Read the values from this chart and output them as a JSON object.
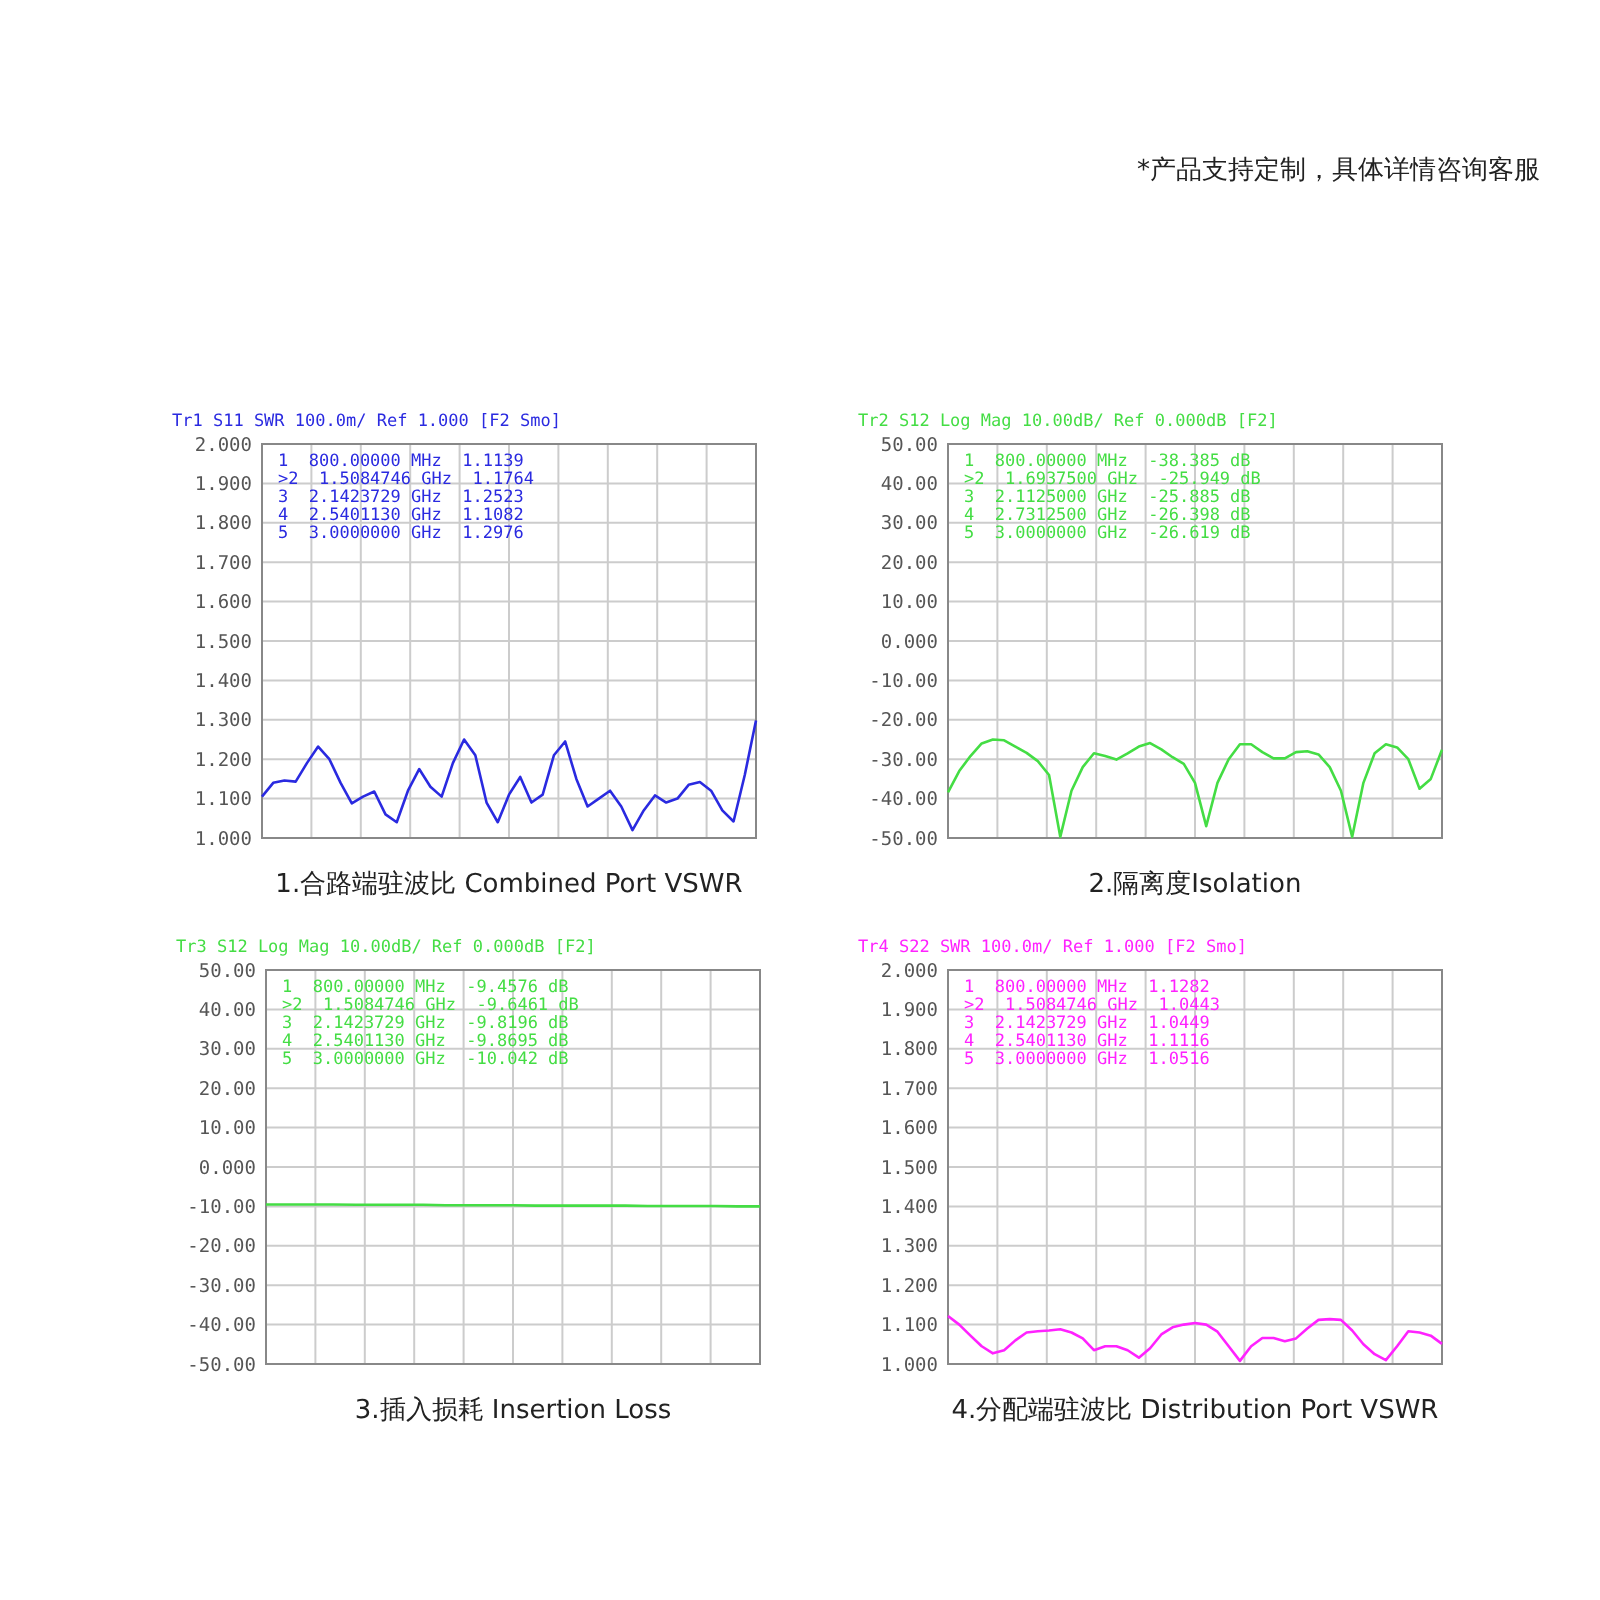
{
  "chart_data": [
    {
      "type": "other",
      "annotations": [
        "*产品支持定制，具体详情咨询客服"
      ]
    },
    {
      "type": "line",
      "title": "Tr1 S11 SWR 100.0m/ Ref 1.000 [F2 Smo]",
      "xlabel": "1.合路端驻波比 Combined Port VSWR",
      "grid": true,
      "tick_labels": "y",
      "categories": [
        null,
        null,
        null,
        null,
        null,
        null,
        null,
        null,
        null,
        null,
        null,
        null,
        null,
        null,
        null,
        null,
        null,
        null,
        null,
        null,
        null,
        null,
        null,
        null,
        null,
        null,
        null,
        null,
        null,
        null,
        null,
        null,
        null,
        null,
        null,
        null,
        null,
        null,
        null,
        null,
        null,
        null,
        null,
        null,
        null
      ],
      "ylim": [
        1.0,
        2.0
      ],
      "yticks": [
        {
          "value": 1.0,
          "label": "1.000"
        },
        {
          "value": 1.1,
          "label": "1.100"
        },
        {
          "value": 1.2,
          "label": "1.200"
        },
        {
          "value": 1.3,
          "label": "1.300"
        },
        {
          "value": 1.4,
          "label": "1.400"
        },
        {
          "value": 1.5,
          "label": "1.500"
        },
        {
          "value": 1.6,
          "label": "1.600"
        },
        {
          "value": 1.7,
          "label": "1.700"
        },
        {
          "value": 1.8,
          "label": "1.800"
        },
        {
          "value": 1.9,
          "label": "1.900"
        },
        {
          "value": 2.0,
          "label": "2.000"
        }
      ],
      "series": [
        {
          "color": "#2a2ae0",
          "values": [
            1.105,
            1.14,
            1.146,
            1.143,
            1.19,
            1.232,
            1.2,
            1.14,
            1.088,
            1.105,
            1.118,
            1.06,
            1.04,
            1.12,
            1.175,
            1.13,
            1.105,
            1.19,
            1.25,
            1.21,
            1.09,
            1.04,
            1.11,
            1.155,
            1.09,
            1.11,
            1.21,
            1.245,
            1.15,
            1.08,
            1.1,
            1.12,
            1.08,
            1.02,
            1.07,
            1.108,
            1.09,
            1.1,
            1.135,
            1.142,
            1.12,
            1.07,
            1.042,
            1.16,
            1.298
          ]
        }
      ],
      "annotations": [
        "1  800.00000 MHz  1.1139",
        ">2  1.5084746 GHz  1.1764",
        "3  2.1423729 GHz  1.2523",
        "4  2.5401130 GHz  1.1082",
        "5  3.0000000 GHz  1.2976"
      ]
    },
    {
      "type": "line",
      "title": "Tr2 S12 Log Mag 10.00dB/ Ref 0.000dB [F2]",
      "xlabel": "2.隔离度Isolation",
      "grid": true,
      "tick_labels": "y",
      "categories": [
        null,
        null,
        null,
        null,
        null,
        null,
        null,
        null,
        null,
        null,
        null,
        null,
        null,
        null,
        null,
        null,
        null,
        null,
        null,
        null,
        null,
        null,
        null,
        null,
        null,
        null,
        null,
        null,
        null,
        null,
        null,
        null,
        null,
        null,
        null,
        null,
        null,
        null,
        null,
        null,
        null,
        null,
        null,
        null,
        null
      ],
      "ylim": [
        -50,
        50
      ],
      "yticks": [
        {
          "value": -50,
          "label": "-50.00"
        },
        {
          "value": -40,
          "label": "-40.00"
        },
        {
          "value": -30,
          "label": "-30.00"
        },
        {
          "value": -20,
          "label": "-20.00"
        },
        {
          "value": -10,
          "label": "-10.00"
        },
        {
          "value": 0,
          "label": "0.000"
        },
        {
          "value": 10,
          "label": "10.00"
        },
        {
          "value": 20,
          "label": "20.00"
        },
        {
          "value": 30,
          "label": "30.00"
        },
        {
          "value": 40,
          "label": "40.00"
        },
        {
          "value": 50,
          "label": "50.00"
        }
      ],
      "series": [
        {
          "color": "#44dd44",
          "values": [
            -38.4,
            -33,
            -29.2,
            -26,
            -25,
            -25.2,
            -26.8,
            -28.4,
            -30.5,
            -34,
            -49.7,
            -38,
            -32,
            -28.5,
            -29.2,
            -30.1,
            -28.5,
            -26.8,
            -25.9,
            -27.5,
            -29.5,
            -31.2,
            -36,
            -47,
            -36,
            -30,
            -26.2,
            -26.2,
            -28.2,
            -29.8,
            -29.8,
            -28.2,
            -28,
            -28.8,
            -32,
            -38,
            -49.7,
            -36,
            -28.5,
            -26.2,
            -27,
            -30,
            -37.5,
            -35,
            -27.6
          ]
        }
      ],
      "annotations": [
        "1  800.00000 MHz  -38.385 dB",
        ">2  1.6937500 GHz  -25.949 dB",
        "3  2.1125000 GHz  -25.885 dB",
        "4  2.7312500 GHz  -26.398 dB",
        "5  3.0000000 GHz  -26.619 dB"
      ]
    },
    {
      "type": "line",
      "title": "Tr3 S12 Log Mag 10.00dB/ Ref 0.000dB [F2]",
      "xlabel": "3.插入损耗 Insertion Loss",
      "grid": true,
      "tick_labels": "y",
      "categories": [
        null,
        null,
        null,
        null,
        null,
        null,
        null,
        null,
        null,
        null,
        null,
        null,
        null,
        null,
        null,
        null,
        null,
        null,
        null,
        null,
        null,
        null,
        null
      ],
      "ylim": [
        -50,
        50
      ],
      "yticks": [
        {
          "value": -50,
          "label": "-50.00"
        },
        {
          "value": -40,
          "label": "-40.00"
        },
        {
          "value": -30,
          "label": "-30.00"
        },
        {
          "value": -20,
          "label": "-20.00"
        },
        {
          "value": -10,
          "label": "-10.00"
        },
        {
          "value": 0,
          "label": "0.000"
        },
        {
          "value": 10,
          "label": "10.00"
        },
        {
          "value": 20,
          "label": "20.00"
        },
        {
          "value": 30,
          "label": "30.00"
        },
        {
          "value": 40,
          "label": "40.00"
        },
        {
          "value": 50,
          "label": "50.00"
        }
      ],
      "series": [
        {
          "color": "#44dd44",
          "values": [
            -9.5,
            -9.5,
            -9.5,
            -9.5,
            -9.6,
            -9.6,
            -9.6,
            -9.6,
            -9.7,
            -9.7,
            -9.7,
            -9.7,
            -9.8,
            -9.8,
            -9.8,
            -9.8,
            -9.8,
            -9.9,
            -9.9,
            -9.9,
            -9.9,
            -10.0,
            -10.0
          ]
        }
      ],
      "annotations": [
        "1  800.00000 MHz  -9.4576 dB",
        ">2  1.5084746 GHz  -9.6461 dB",
        "3  2.1423729 GHz  -9.8196 dB",
        "4  2.5401130 GHz  -9.8695 dB",
        "5  3.0000000 GHz  -10.042 dB"
      ]
    },
    {
      "type": "line",
      "title": "Tr4 S22 SWR 100.0m/ Ref 1.000 [F2 Smo]",
      "xlabel": "4.分配端驻波比 Distribution  Port VSWR",
      "grid": true,
      "tick_labels": "y",
      "categories": [
        null,
        null,
        null,
        null,
        null,
        null,
        null,
        null,
        null,
        null,
        null,
        null,
        null,
        null,
        null,
        null,
        null,
        null,
        null,
        null,
        null,
        null,
        null,
        null,
        null,
        null,
        null,
        null,
        null,
        null,
        null,
        null,
        null,
        null,
        null,
        null,
        null,
        null,
        null,
        null,
        null,
        null,
        null,
        null,
        null
      ],
      "ylim": [
        1.0,
        2.0
      ],
      "yticks": [
        {
          "value": 1.0,
          "label": "1.000"
        },
        {
          "value": 1.1,
          "label": "1.100"
        },
        {
          "value": 1.2,
          "label": "1.200"
        },
        {
          "value": 1.3,
          "label": "1.300"
        },
        {
          "value": 1.4,
          "label": "1.400"
        },
        {
          "value": 1.5,
          "label": "1.500"
        },
        {
          "value": 1.6,
          "label": "1.600"
        },
        {
          "value": 1.7,
          "label": "1.700"
        },
        {
          "value": 1.8,
          "label": "1.800"
        },
        {
          "value": 1.9,
          "label": "1.900"
        },
        {
          "value": 2.0,
          "label": "2.000"
        }
      ],
      "series": [
        {
          "color": "#ff22ff",
          "values": [
            1.122,
            1.1,
            1.072,
            1.045,
            1.027,
            1.035,
            1.06,
            1.08,
            1.083,
            1.085,
            1.088,
            1.08,
            1.065,
            1.035,
            1.045,
            1.045,
            1.035,
            1.016,
            1.04,
            1.075,
            1.093,
            1.1,
            1.104,
            1.1,
            1.082,
            1.045,
            1.008,
            1.045,
            1.066,
            1.066,
            1.058,
            1.065,
            1.09,
            1.112,
            1.114,
            1.112,
            1.085,
            1.05,
            1.025,
            1.01,
            1.045,
            1.083,
            1.08,
            1.072,
            1.051
          ]
        }
      ],
      "annotations": [
        "1  800.00000 MHz  1.1282",
        ">2  1.5084746 GHz  1.0443",
        "3  2.1423729 GHz  1.0449",
        "4  2.5401130 GHz  1.1116",
        "5  3.0000000 GHz  1.0516"
      ]
    }
  ]
}
